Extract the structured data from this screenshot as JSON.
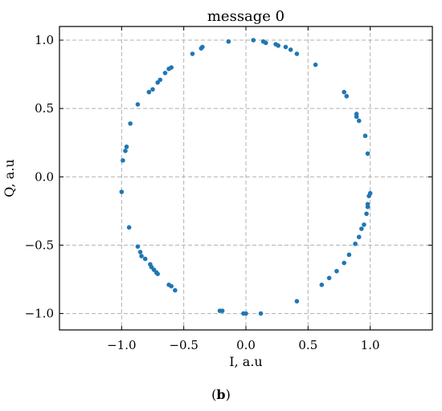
{
  "chart_data": {
    "type": "scatter",
    "title": "message 0",
    "xlabel": "I, a.u",
    "ylabel": "Q, a.u",
    "xlim": [
      -1.5,
      1.5
    ],
    "ylim": [
      -1.12,
      1.1
    ],
    "xticks": [
      -1.0,
      -0.5,
      0.0,
      0.5,
      1.0
    ],
    "xtick_labels": [
      "−1.0",
      "−0.5",
      "0.0",
      "0.5",
      "1.0"
    ],
    "yticks": [
      -1.0,
      -0.5,
      0.0,
      0.5,
      1.0
    ],
    "ytick_labels": [
      "−1.0",
      "−0.5",
      "0.0",
      "0.5",
      "1.0"
    ],
    "grid": true,
    "marker_color": "#1f77b4",
    "points": [
      [
        0.06,
        1.0
      ],
      [
        -0.14,
        0.99
      ],
      [
        0.14,
        0.99
      ],
      [
        0.16,
        0.98
      ],
      [
        0.24,
        0.97
      ],
      [
        0.26,
        0.96
      ],
      [
        0.32,
        0.95
      ],
      [
        0.36,
        0.93
      ],
      [
        0.41,
        0.9
      ],
      [
        0.56,
        0.82
      ],
      [
        -0.35,
        0.95
      ],
      [
        -0.36,
        0.94
      ],
      [
        -0.43,
        0.9
      ],
      [
        -0.62,
        0.79
      ],
      [
        -0.6,
        0.8
      ],
      [
        -0.65,
        0.76
      ],
      [
        -0.69,
        0.71
      ],
      [
        -0.71,
        0.69
      ],
      [
        -0.75,
        0.64
      ],
      [
        -0.78,
        0.62
      ],
      [
        -0.87,
        0.53
      ],
      [
        -0.93,
        0.39
      ],
      [
        -0.96,
        0.22
      ],
      [
        -0.97,
        0.19
      ],
      [
        -0.99,
        0.12
      ],
      [
        -1.0,
        -0.11
      ],
      [
        -0.94,
        -0.37
      ],
      [
        -0.87,
        -0.51
      ],
      [
        -0.85,
        -0.55
      ],
      [
        -0.84,
        -0.58
      ],
      [
        -0.81,
        -0.6
      ],
      [
        -0.77,
        -0.64
      ],
      [
        -0.76,
        -0.66
      ],
      [
        -0.74,
        -0.68
      ],
      [
        -0.72,
        -0.7
      ],
      [
        -0.71,
        -0.71
      ],
      [
        -0.62,
        -0.79
      ],
      [
        -0.6,
        -0.8
      ],
      [
        -0.57,
        -0.83
      ],
      [
        -0.21,
        -0.98
      ],
      [
        -0.19,
        -0.98
      ],
      [
        -0.02,
        -1.0
      ],
      [
        0.0,
        -1.0
      ],
      [
        0.12,
        -1.0
      ],
      [
        0.41,
        -0.91
      ],
      [
        0.61,
        -0.79
      ],
      [
        0.67,
        -0.74
      ],
      [
        0.73,
        -0.69
      ],
      [
        0.79,
        -0.63
      ],
      [
        0.83,
        -0.57
      ],
      [
        0.88,
        -0.49
      ],
      [
        0.91,
        -0.44
      ],
      [
        0.93,
        -0.38
      ],
      [
        0.95,
        -0.35
      ],
      [
        0.97,
        -0.27
      ],
      [
        0.98,
        -0.22
      ],
      [
        0.98,
        -0.2
      ],
      [
        0.99,
        -0.14
      ],
      [
        1.0,
        -0.12
      ],
      [
        0.98,
        0.17
      ],
      [
        0.96,
        0.3
      ],
      [
        0.91,
        0.41
      ],
      [
        0.89,
        0.44
      ],
      [
        0.89,
        0.46
      ],
      [
        0.81,
        0.59
      ],
      [
        0.79,
        0.62
      ]
    ],
    "caption": "b"
  }
}
